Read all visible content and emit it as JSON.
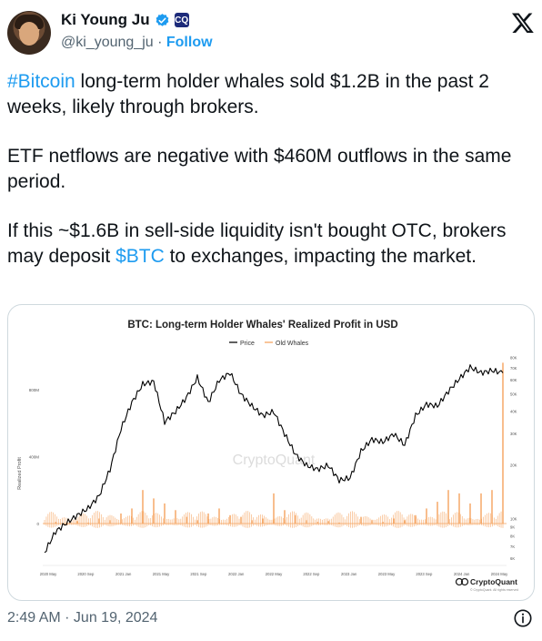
{
  "author": {
    "name": "Ki Young Ju",
    "handle": "@ki_young_ju",
    "separator": "·",
    "follow_label": "Follow",
    "affiliate_badge": "CQ"
  },
  "tweet": {
    "p1_link": "#Bitcoin",
    "p1_rest": " long-term holder whales sold $1.2B in the past 2 weeks, likely through brokers.",
    "p2": "ETF netflows are negative with $460M outflows in the same period.",
    "p3_a": "If this ~$1.6B in sell-side liquidity isn't bought OTC, brokers may deposit ",
    "p3_link": "$BTC",
    "p3_b": " to exchanges, impacting the market."
  },
  "timestamp": "2:49 AM · Jun 19, 2024",
  "icons": {
    "verified": "verified-badge-icon",
    "logo": "x-logo-icon",
    "info": "info-icon"
  },
  "colors": {
    "link": "#1d9bf0",
    "price_line": "#000000",
    "old_whales": "#f5a25d"
  },
  "chart_data": {
    "type": "line",
    "title": "BTC: Long-term Holder Whales' Realized Profit in USD",
    "ylabel": "Realized Profit",
    "legend": [
      "Price",
      "Old Whales"
    ],
    "legend_position": "top-center",
    "watermark": "CryptoQuant",
    "brand": "CryptoQuant",
    "brand_sub": "© CryptoQuant. All rights reserved",
    "x_ticks": [
      "2020 May",
      "2020 Sep",
      "2021 Jan",
      "2021 May",
      "2021 Sep",
      "2022 Jan",
      "2022 May",
      "2022 Sep",
      "2023 Jan",
      "2023 May",
      "2023 Sep",
      "2024 Jan",
      "2024 May"
    ],
    "left_axis_ticks": [
      {
        "label": "800M",
        "value": 800
      },
      {
        "label": "400M",
        "value": 400
      },
      {
        "label": "0",
        "value": 0
      }
    ],
    "left_ylim": [
      -250,
      1000
    ],
    "right_axis_ticks": [
      "80K",
      "70K",
      "60K",
      "50K",
      "40K",
      "30K",
      "20K",
      "10K",
      "9K",
      "8K",
      "7K",
      "6K"
    ],
    "series": [
      {
        "name": "Price",
        "axis": "right",
        "values_k": [
          6.5,
          8.5,
          9.5,
          10.5,
          11.5,
          13.5,
          19,
          32,
          45,
          57,
          59,
          35,
          40,
          48,
          62,
          45,
          60,
          66,
          50,
          43,
          38,
          40,
          30,
          23,
          20,
          19,
          20,
          16.5,
          17,
          24,
          28,
          27,
          30,
          26,
          38,
          44,
          43,
          52,
          61,
          71,
          66,
          68,
          66
        ]
      },
      {
        "name": "Old Whales",
        "axis": "left",
        "values_m": [
          0,
          10,
          -10,
          15,
          5,
          30,
          20,
          60,
          90,
          200,
          150,
          120,
          80,
          40,
          20,
          60,
          90,
          50,
          40,
          20,
          30,
          180,
          80,
          50,
          20,
          10,
          15,
          5,
          0,
          40,
          20,
          10,
          30,
          20,
          50,
          90,
          130,
          200,
          180,
          120,
          180,
          200,
          960
        ]
      }
    ]
  }
}
